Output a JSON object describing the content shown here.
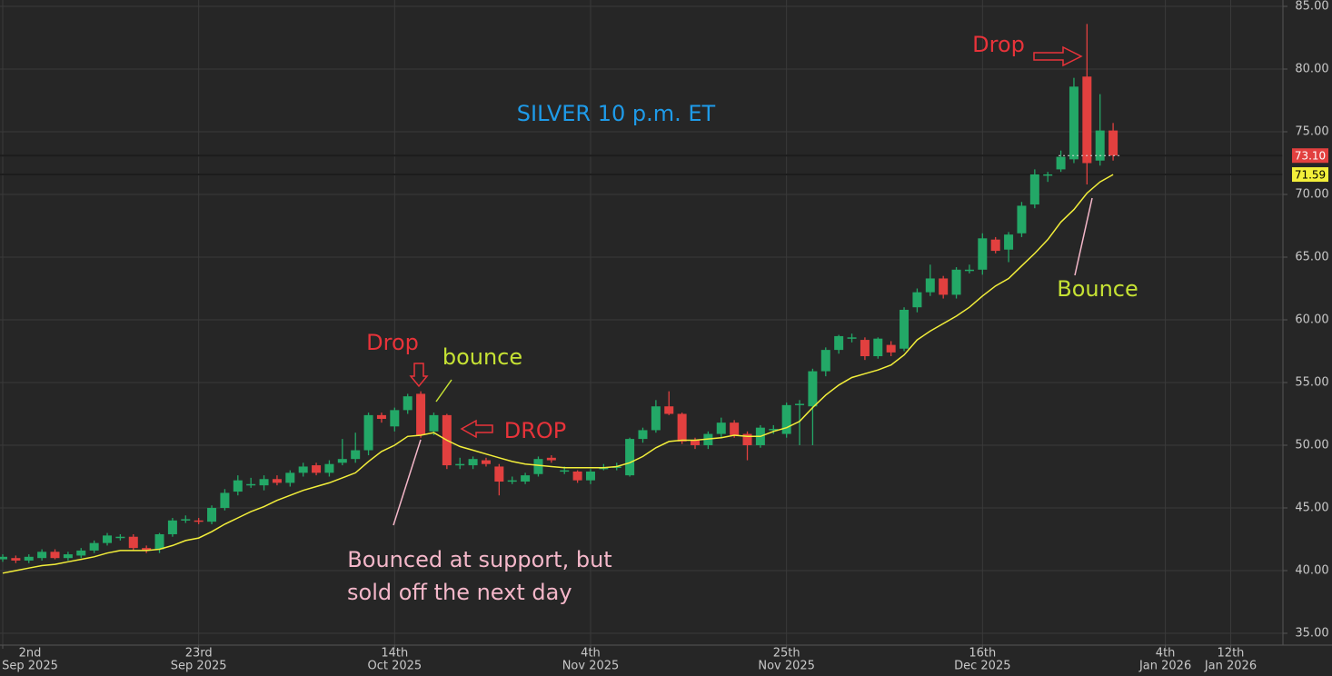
{
  "chart_data": {
    "type": "candlestick",
    "title": "SILVER 10 p.m. ET",
    "x": [
      "2025-09-02",
      "2025-09-03",
      "2025-09-04",
      "2025-09-05",
      "2025-09-08",
      "2025-09-09",
      "2025-09-10",
      "2025-09-11",
      "2025-09-12",
      "2025-09-15",
      "2025-09-16",
      "2025-09-17",
      "2025-09-18",
      "2025-09-19",
      "2025-09-22",
      "2025-09-23",
      "2025-09-24",
      "2025-09-25",
      "2025-09-26",
      "2025-09-29",
      "2025-09-30",
      "2025-10-01",
      "2025-10-02",
      "2025-10-03",
      "2025-10-06",
      "2025-10-07",
      "2025-10-08",
      "2025-10-09",
      "2025-10-10",
      "2025-10-13",
      "2025-10-14",
      "2025-10-15",
      "2025-10-16",
      "2025-10-17",
      "2025-10-20",
      "2025-10-21",
      "2025-10-22",
      "2025-10-23",
      "2025-10-24",
      "2025-10-27",
      "2025-10-28",
      "2025-10-29",
      "2025-10-30",
      "2025-10-31",
      "2025-11-03",
      "2025-11-04",
      "2025-11-05",
      "2025-11-06",
      "2025-11-07",
      "2025-11-10",
      "2025-11-11",
      "2025-11-12",
      "2025-11-13",
      "2025-11-14",
      "2025-11-17",
      "2025-11-18",
      "2025-11-19",
      "2025-11-20",
      "2025-11-21",
      "2025-11-24",
      "2025-11-25",
      "2025-11-26",
      "2025-11-27",
      "2025-11-28",
      "2025-12-01",
      "2025-12-02",
      "2025-12-03",
      "2025-12-04",
      "2025-12-05",
      "2025-12-08",
      "2025-12-09",
      "2025-12-10",
      "2025-12-11",
      "2025-12-12",
      "2025-12-15",
      "2025-12-16",
      "2025-12-17",
      "2025-12-18",
      "2025-12-19",
      "2025-12-22",
      "2025-12-23",
      "2025-12-24",
      "2025-12-25",
      "2025-12-26",
      "2025-12-29",
      "2025-12-30"
    ],
    "open": [
      40.9,
      41.0,
      40.8,
      41.0,
      41.5,
      41.0,
      41.2,
      41.6,
      42.2,
      42.7,
      42.7,
      41.8,
      41.7,
      42.9,
      44.1,
      44.0,
      43.9,
      45.0,
      46.3,
      46.9,
      46.8,
      47.3,
      47.0,
      47.8,
      48.4,
      47.8,
      48.6,
      48.9,
      49.6,
      52.4,
      51.5,
      52.8,
      54.1,
      51.1,
      52.4,
      48.5,
      48.4,
      48.8,
      48.3,
      47.2,
      47.1,
      47.7,
      49.0,
      48.0,
      47.9,
      47.2,
      48.2,
      48.3,
      47.6,
      50.5,
      51.2,
      53.1,
      52.5,
      50.4,
      50.0,
      50.9,
      51.8,
      50.9,
      50.0,
      51.3,
      50.9,
      53.3,
      53.1,
      55.9,
      57.6,
      58.6,
      58.4,
      57.1,
      58.0,
      57.7,
      61.0,
      62.2,
      63.3,
      62.0,
      64.0,
      64.0,
      66.4,
      65.6,
      66.9,
      69.2,
      71.6,
      72.0,
      72.8,
      79.4,
      72.7,
      75.1
    ],
    "high": [
      41.3,
      41.2,
      41.3,
      41.7,
      41.7,
      41.5,
      41.8,
      42.4,
      43.0,
      42.9,
      42.9,
      42.0,
      43.0,
      44.2,
      44.4,
      44.2,
      45.2,
      46.5,
      47.6,
      47.4,
      47.6,
      47.6,
      48.0,
      48.6,
      48.6,
      48.8,
      50.5,
      51.0,
      52.6,
      52.6,
      53.0,
      54.1,
      54.3,
      52.6,
      52.5,
      49.0,
      49.1,
      49.0,
      48.5,
      47.5,
      47.8,
      49.1,
      49.2,
      48.3,
      48.0,
      48.1,
      48.5,
      48.6,
      50.6,
      51.4,
      53.6,
      54.3,
      52.6,
      50.6,
      51.1,
      52.2,
      52.0,
      51.1,
      51.6,
      51.6,
      53.4,
      53.6,
      56.1,
      57.8,
      58.8,
      58.9,
      58.6,
      58.6,
      58.3,
      61.0,
      62.5,
      64.4,
      63.5,
      64.2,
      64.4,
      66.9,
      66.6,
      67.0,
      69.4,
      72.0,
      71.8,
      73.5,
      79.3,
      83.6,
      78.0,
      75.7
    ],
    "low": [
      40.7,
      40.6,
      40.6,
      40.8,
      40.9,
      40.8,
      41.0,
      41.4,
      42.0,
      42.4,
      41.6,
      41.4,
      41.4,
      42.7,
      43.8,
      43.7,
      43.7,
      44.8,
      46.0,
      46.6,
      46.4,
      46.8,
      46.7,
      47.5,
      47.6,
      47.5,
      48.4,
      48.6,
      49.2,
      51.8,
      51.1,
      52.5,
      50.6,
      50.8,
      48.1,
      48.1,
      48.1,
      48.3,
      46.0,
      46.9,
      46.9,
      47.5,
      48.6,
      47.7,
      47.0,
      46.9,
      48.0,
      48.0,
      47.5,
      50.2,
      51.0,
      52.4,
      50.1,
      49.7,
      49.7,
      50.6,
      50.6,
      48.8,
      49.8,
      50.9,
      50.6,
      50.0,
      50.0,
      55.5,
      57.3,
      58.2,
      56.8,
      56.9,
      57.1,
      57.5,
      60.6,
      61.9,
      61.7,
      61.7,
      63.7,
      63.6,
      65.3,
      64.6,
      66.6,
      68.9,
      71.0,
      71.8,
      72.5,
      70.8,
      72.3,
      72.7
    ],
    "close": [
      41.1,
      40.8,
      41.1,
      41.5,
      41.0,
      41.3,
      41.6,
      42.2,
      42.8,
      42.7,
      41.8,
      41.6,
      42.9,
      44.0,
      44.1,
      43.9,
      45.0,
      46.2,
      47.2,
      46.9,
      47.3,
      47.0,
      47.8,
      48.3,
      47.8,
      48.5,
      48.9,
      49.6,
      52.4,
      52.1,
      52.8,
      53.9,
      50.8,
      52.4,
      48.4,
      48.5,
      48.9,
      48.5,
      47.1,
      47.2,
      47.6,
      48.9,
      48.8,
      48.0,
      47.2,
      47.9,
      48.2,
      48.3,
      50.5,
      51.2,
      53.1,
      52.5,
      50.3,
      50.0,
      50.9,
      51.8,
      50.8,
      50.0,
      51.4,
      51.3,
      53.2,
      53.3,
      55.9,
      57.6,
      58.7,
      58.6,
      57.1,
      58.5,
      57.4,
      60.8,
      62.2,
      63.3,
      62.0,
      64.0,
      64.0,
      66.5,
      65.5,
      66.8,
      69.1,
      71.6,
      71.6,
      73.0,
      78.6,
      72.5,
      75.1,
      73.1
    ],
    "up_color": "#23a867",
    "down_color": "#e2403f",
    "moving_average": {
      "color": "#f3ef3a",
      "values": [
        39.8,
        40.0,
        40.2,
        40.4,
        40.5,
        40.7,
        40.9,
        41.1,
        41.4,
        41.6,
        41.6,
        41.6,
        41.7,
        42.0,
        42.4,
        42.6,
        43.1,
        43.7,
        44.2,
        44.7,
        45.1,
        45.6,
        46.0,
        46.4,
        46.7,
        47.0,
        47.4,
        47.8,
        48.7,
        49.5,
        50.0,
        50.7,
        50.8,
        51.0,
        50.4,
        49.9,
        49.6,
        49.3,
        49.0,
        48.7,
        48.5,
        48.4,
        48.3,
        48.2,
        48.2,
        48.2,
        48.2,
        48.3,
        48.6,
        49.1,
        49.8,
        50.3,
        50.4,
        50.4,
        50.5,
        50.6,
        50.8,
        50.7,
        50.7,
        51.1,
        51.4,
        51.9,
        53.0,
        54.0,
        54.8,
        55.4,
        55.7,
        56.0,
        56.4,
        57.2,
        58.4,
        59.1,
        59.7,
        60.3,
        61.0,
        61.9,
        62.7,
        63.3,
        64.3,
        65.3,
        66.4,
        67.8,
        68.8,
        70.1,
        71.0,
        71.59
      ]
    },
    "price_tags": [
      {
        "value": 73.1,
        "label": "73.10",
        "color": "#e2403f",
        "text_color": "#ffffff"
      },
      {
        "value": 71.59,
        "label": "71.59",
        "color": "#f3ef3a",
        "text_color": "#000000"
      }
    ],
    "ylim": [
      35,
      85
    ],
    "yticks": [
      {
        "value": 35,
        "label": "35.00"
      },
      {
        "value": 40,
        "label": "40.00"
      },
      {
        "value": 45,
        "label": "45.00"
      },
      {
        "value": 50,
        "label": "50.00"
      },
      {
        "value": 55,
        "label": "55.00"
      },
      {
        "value": 60,
        "label": "60.00"
      },
      {
        "value": 65,
        "label": "65.00"
      },
      {
        "value": 70,
        "label": "70.00"
      },
      {
        "value": 75,
        "label": "75.00"
      },
      {
        "value": 80,
        "label": "80.00"
      },
      {
        "value": 85,
        "label": "85.00"
      }
    ],
    "xlim": [
      "2025-09-02",
      "2026-01-16"
    ],
    "xticks": [
      {
        "value": "2025-09-02",
        "label": [
          "2nd",
          "Sep 2025"
        ]
      },
      {
        "value": "2025-09-23",
        "label": [
          "23rd",
          "Sep 2025"
        ]
      },
      {
        "value": "2025-10-14",
        "label": [
          "14th",
          "Oct 2025"
        ]
      },
      {
        "value": "2025-11-04",
        "label": [
          "4th",
          "Nov 2025"
        ]
      },
      {
        "value": "2025-11-25",
        "label": [
          "25th",
          "Nov 2025"
        ]
      },
      {
        "value": "2025-12-16",
        "label": [
          "16th",
          "Dec 2025"
        ]
      },
      {
        "value": "2026-01-04",
        "label": [
          "4th",
          "Jan 2026"
        ]
      },
      {
        "value": "2026-01-12",
        "label": [
          "12th",
          "Jan 2026"
        ]
      }
    ],
    "grid": true,
    "annotations": [
      "Drop",
      "bounce",
      "DROP",
      "Bounced at support, but",
      "sold off the next day",
      "Drop",
      "Bounce"
    ]
  }
}
